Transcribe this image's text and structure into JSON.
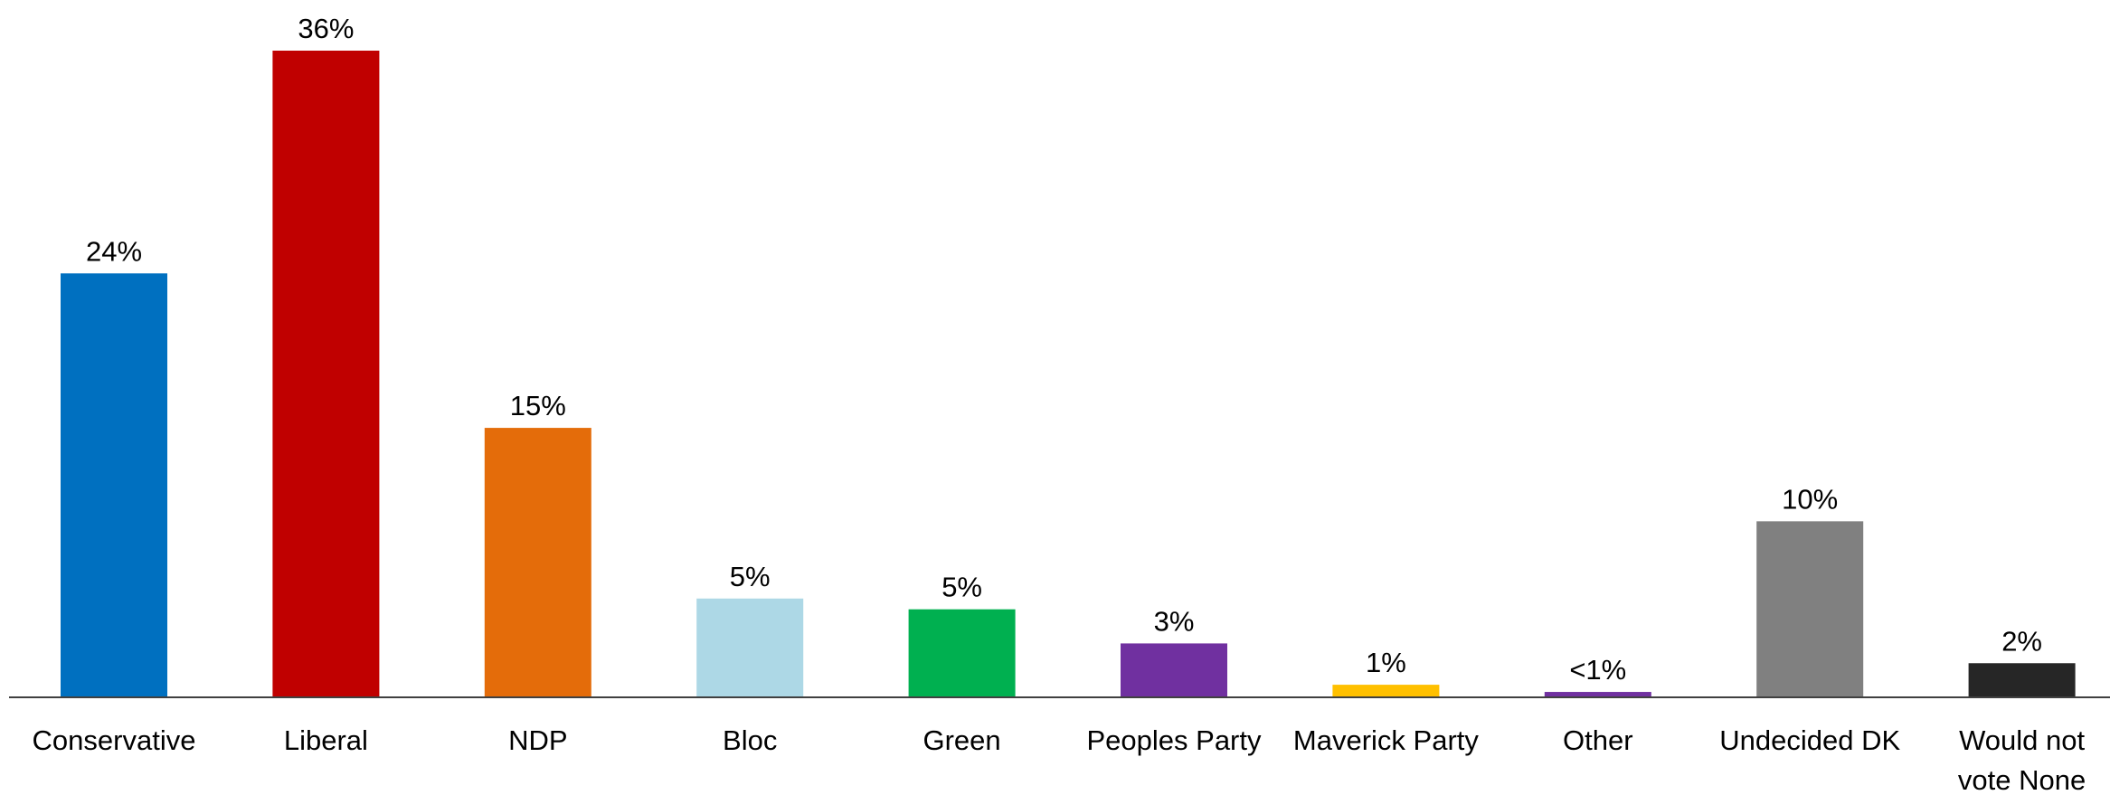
{
  "chart_data": {
    "type": "bar",
    "categories": [
      "Conservative",
      "Liberal",
      "NDP",
      "Bloc",
      "Green",
      "Peoples Party",
      "Maverick Party",
      "Other",
      "Undecided DK",
      "Would not vote None"
    ],
    "category_lines": [
      [
        "Conservative"
      ],
      [
        "Liberal"
      ],
      [
        "NDP"
      ],
      [
        "Bloc"
      ],
      [
        "Green"
      ],
      [
        "Peoples Party"
      ],
      [
        "Maverick Party"
      ],
      [
        "Other"
      ],
      [
        "Undecided DK"
      ],
      [
        "Would not",
        "vote None"
      ]
    ],
    "values": [
      23.6,
      36.0,
      15.0,
      5.5,
      4.9,
      3.0,
      0.7,
      0.3,
      9.8,
      1.9
    ],
    "labels": [
      "24%",
      "36%",
      "15%",
      "5%",
      "5%",
      "3%",
      "1%",
      "<1%",
      "10%",
      "2%"
    ],
    "colors": [
      "#0070C0",
      "#C00000",
      "#E46C0A",
      "#ADD8E6",
      "#00B050",
      "#7030A0",
      "#FFC000",
      "#7030A0",
      "#808080",
      "#262626"
    ],
    "ylim": [
      0,
      36
    ],
    "grid": false,
    "legend": "none",
    "title": "",
    "xlabel": "",
    "ylabel": ""
  }
}
